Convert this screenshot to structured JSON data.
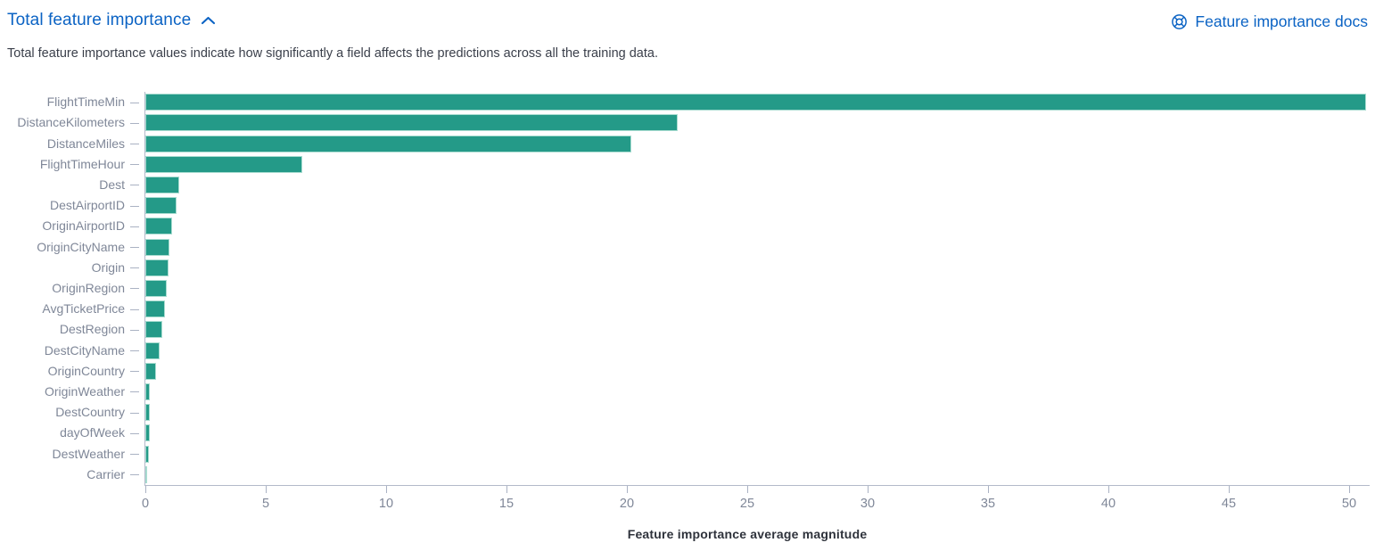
{
  "header": {
    "title": "Total feature importance",
    "docs_link": "Feature importance docs",
    "description": "Total feature importance values indicate how significantly a field affects the predictions across all the training data."
  },
  "colors": {
    "link_blue": "#0b63c4",
    "bar_fill": "#249a88",
    "bar_border": "#a8dcd0",
    "axis_line": "#b3bac9",
    "tick_text": "#7f8798",
    "body_text": "#3a3f4a"
  },
  "icons": {
    "collapse": "chevron-up-icon",
    "docs": "help-ring-icon"
  },
  "chart_data": {
    "type": "bar",
    "orientation": "horizontal",
    "title": "Total feature importance",
    "xlabel": "Feature importance average magnitude",
    "ylabel": "",
    "xlim": [
      0,
      50
    ],
    "xticks": [
      0,
      5,
      10,
      15,
      20,
      25,
      30,
      35,
      40,
      45,
      50
    ],
    "grid": false,
    "legend": "none",
    "categories": [
      "FlightTimeMin",
      "DistanceKilometers",
      "DistanceMiles",
      "FlightTimeHour",
      "Dest",
      "DestAirportID",
      "OriginAirportID",
      "OriginCityName",
      "Origin",
      "OriginRegion",
      "AvgTicketPrice",
      "DestRegion",
      "DestCityName",
      "OriginCountry",
      "OriginWeather",
      "DestCountry",
      "dayOfWeek",
      "DestWeather",
      "Carrier"
    ],
    "values": [
      50.7,
      22.1,
      20.2,
      6.5,
      1.4,
      1.3,
      1.1,
      1.0,
      0.95,
      0.9,
      0.8,
      0.7,
      0.6,
      0.45,
      0.2,
      0.18,
      0.2,
      0.15,
      0.06
    ]
  }
}
